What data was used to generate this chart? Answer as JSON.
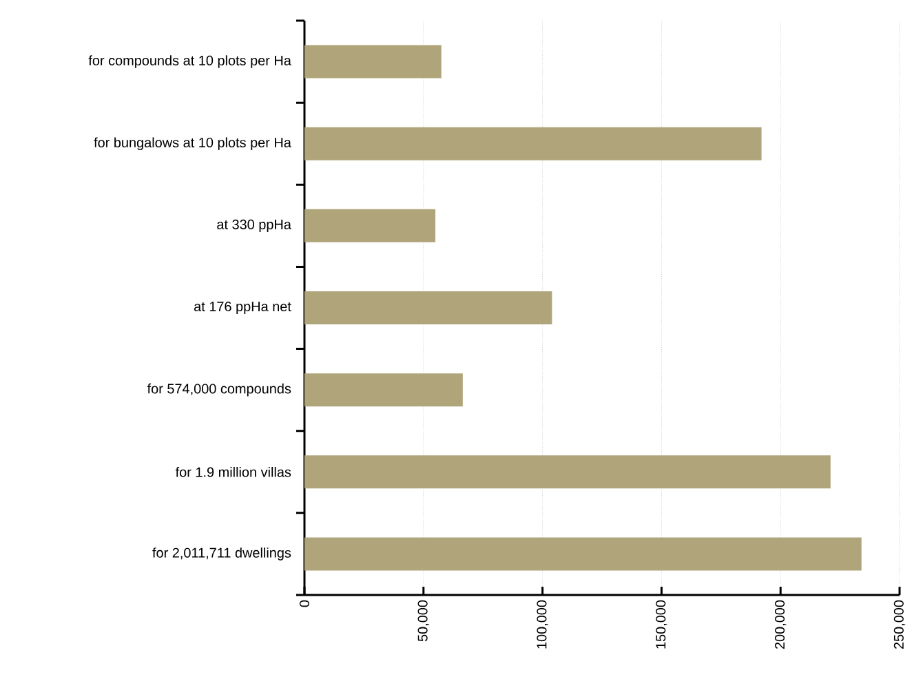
{
  "chart_data": {
    "type": "bar",
    "orientation": "horizontal",
    "categories": [
      "for compounds at 10 plots per Ha",
      "for bungalows at 10 plots per Ha",
      "at 330 ppHa",
      "at 176 ppHa net",
      "for 574,000 compounds",
      "for 1.9 million villas",
      "for 2,011,711 dwellings"
    ],
    "values": [
      57500,
      192000,
      55000,
      104000,
      66500,
      221000,
      234000
    ],
    "color": "#b0a57a",
    "xlim": [
      0,
      250000
    ],
    "xticks": [
      {
        "value": 0,
        "label": "0"
      },
      {
        "value": 50000,
        "label": "50,000"
      },
      {
        "value": 100000,
        "label": "100,000"
      },
      {
        "value": 150000,
        "label": "150,000"
      },
      {
        "value": 200000,
        "label": "200,000"
      },
      {
        "value": 250000,
        "label": "250,000"
      }
    ],
    "grid": "x"
  }
}
